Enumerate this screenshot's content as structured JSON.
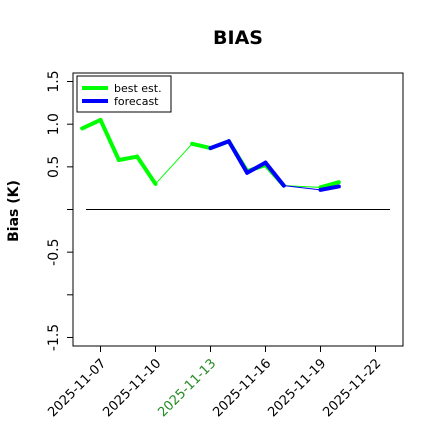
{
  "chart_data": {
    "type": "line",
    "title": "BIAS",
    "xlabel": "",
    "ylabel": "Bias (K)",
    "ylim": [
      -1.6,
      1.6
    ],
    "yticks": [
      -1.5,
      -1.0,
      -0.5,
      0.0,
      0.5,
      1.0,
      1.5
    ],
    "ytick_labels": [
      "-1.5",
      "",
      "-0.5",
      "",
      "0.5",
      "1.0",
      "1.5"
    ],
    "xlim": [
      "2025-11-05 12:00",
      "2025-11-23 12:00"
    ],
    "xticks": [
      "2025-11-07",
      "2025-11-10",
      "2025-11-13",
      "2025-11-16",
      "2025-11-19",
      "2025-11-22"
    ],
    "xtick_colors": [
      "#000000",
      "#000000",
      "#228b22",
      "#000000",
      "#000000",
      "#000000"
    ],
    "reference_line": 0,
    "legend_position": "top-left",
    "grid": false,
    "series": [
      {
        "name": "best est.",
        "color": "#00ff00",
        "x": [
          "2025-11-06",
          "2025-11-07",
          "2025-11-08",
          "2025-11-09",
          "2025-11-10",
          "2025-11-12",
          "2025-11-13",
          "2025-11-14",
          "2025-11-15",
          "2025-11-16",
          "2025-11-17",
          "2025-11-19",
          "2025-11-20"
        ],
        "values": [
          0.95,
          1.05,
          0.58,
          0.62,
          0.3,
          0.77,
          0.72,
          0.8,
          0.45,
          0.52,
          0.28,
          0.26,
          0.32
        ]
      },
      {
        "name": "forecast",
        "color": "#0000ff",
        "x": [
          "2025-11-13",
          "2025-11-14",
          "2025-11-15",
          "2025-11-16",
          "2025-11-17",
          "2025-11-19",
          "2025-11-20"
        ],
        "values": [
          0.72,
          0.8,
          0.43,
          0.55,
          0.28,
          0.23,
          0.27
        ]
      }
    ]
  }
}
